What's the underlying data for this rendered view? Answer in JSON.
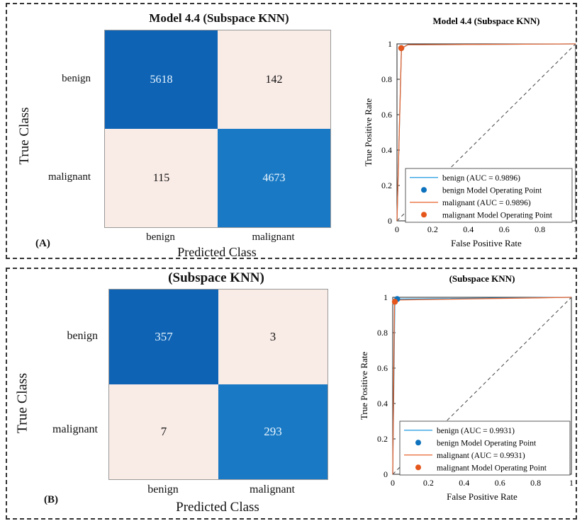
{
  "panels": [
    {
      "tag": "(A)",
      "cm_title": "Model 4.4 (Subspace KNN)",
      "roc_title": "Model 4.4 (Subspace KNN)"
    },
    {
      "tag": "(B)",
      "cm_title": "(Subspace KNN)",
      "roc_title": "(Subspace KNN)"
    }
  ],
  "colors": {
    "high": "#0e63b4",
    "mid": "#1a79c4",
    "low": "#f9ebe6",
    "benign_line": "#1f9ae0",
    "malignant_line": "#e8642e",
    "benign_point": "#0d72bd",
    "malignant_point": "#e4561c"
  },
  "chart_data": [
    {
      "type": "heatmap",
      "title": "Model 4.4 (Subspace KNN)",
      "xlabel": "Predicted Class",
      "ylabel": "True Class",
      "x_categories": [
        "benign",
        "malignant"
      ],
      "y_categories": [
        "benign",
        "malignant"
      ],
      "values": [
        [
          "5618",
          "142"
        ],
        [
          "115",
          "4673"
        ]
      ],
      "cell_colors": [
        [
          "high",
          "low"
        ],
        [
          "low",
          "mid"
        ]
      ]
    },
    {
      "type": "line",
      "title": "Model 4.4 (Subspace KNN)",
      "xlabel": "False Positive Rate",
      "ylabel": "True Positive Rate",
      "xlim": [
        0,
        1
      ],
      "ylim": [
        0,
        1
      ],
      "xticks": [
        "0",
        "0.2",
        "0.4",
        "0.6",
        "0.8",
        "1"
      ],
      "yticks": [
        "0",
        "0.2",
        "0.4",
        "0.6",
        "0.8",
        "1"
      ],
      "legend_position": "bottom-right",
      "series": [
        {
          "name": "benign (AUC = 0.9896)",
          "kind": "line",
          "color": "benign_line",
          "x": [
            0,
            0.025,
            0.06,
            1
          ],
          "y": [
            0,
            0.975,
            0.995,
            1
          ]
        },
        {
          "name": "benign Model Operating Point",
          "kind": "point",
          "color": "benign_point",
          "x": [
            0.024
          ],
          "y": [
            0.976
          ]
        },
        {
          "name": "malignant (AUC = 0.9896)",
          "kind": "line",
          "color": "malignant_line",
          "x": [
            0,
            0.025,
            0.06,
            1
          ],
          "y": [
            0,
            0.975,
            0.995,
            1
          ]
        },
        {
          "name": "malignant Model Operating Point",
          "kind": "point",
          "color": "malignant_point",
          "x": [
            0.024
          ],
          "y": [
            0.976
          ]
        }
      ]
    },
    {
      "type": "heatmap",
      "title": "(Subspace KNN)",
      "xlabel": "Predicted Class",
      "ylabel": "True Class",
      "x_categories": [
        "benign",
        "malignant"
      ],
      "y_categories": [
        "benign",
        "malignant"
      ],
      "values": [
        [
          "357",
          "3"
        ],
        [
          "7",
          "293"
        ]
      ],
      "cell_colors": [
        [
          "high",
          "low"
        ],
        [
          "low",
          "mid"
        ]
      ]
    },
    {
      "type": "line",
      "title": "(Subspace KNN)",
      "xlabel": "False Positive Rate",
      "ylabel": "True Positive Rate",
      "xlim": [
        0,
        1
      ],
      "ylim": [
        0,
        1
      ],
      "xticks": [
        "0",
        "0.2",
        "0.4",
        "0.6",
        "0.8",
        "1"
      ],
      "yticks": [
        "0",
        "0.2",
        "0.4",
        "0.6",
        "0.8",
        "1"
      ],
      "legend_position": "bottom-right",
      "series": [
        {
          "name": "benign (AUC = 0.9931)",
          "kind": "line",
          "color": "benign_line",
          "x": [
            0,
            0.012,
            0.04,
            1
          ],
          "y": [
            0,
            0.975,
            0.99,
            1
          ]
        },
        {
          "name": "benign Model Operating Point",
          "kind": "point",
          "color": "benign_point",
          "x": [
            0.025
          ],
          "y": [
            0.99
          ]
        },
        {
          "name": "malignant (AUC = 0.9931)",
          "kind": "line",
          "color": "malignant_line",
          "x": [
            0,
            0.01,
            0.04,
            1
          ],
          "y": [
            0,
            0.97,
            0.985,
            1
          ]
        },
        {
          "name": "malignant Model Operating Point",
          "kind": "point",
          "color": "malignant_point",
          "x": [
            0.012
          ],
          "y": [
            0.975
          ]
        }
      ]
    }
  ]
}
